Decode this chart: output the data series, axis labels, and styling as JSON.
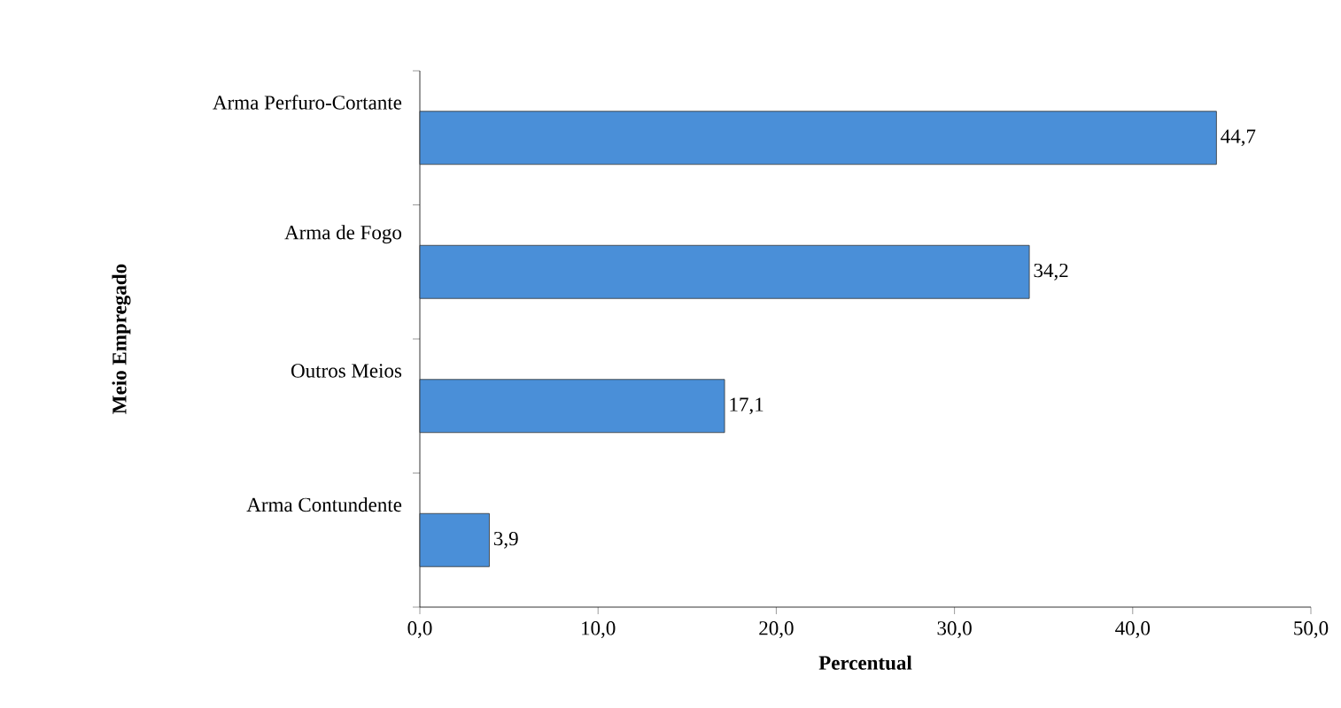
{
  "chart_data": {
    "type": "bar",
    "orientation": "horizontal",
    "xlabel": "Percentual",
    "ylabel": "Meio Empregado",
    "categories": [
      "Arma Perfuro-Cortante",
      "Arma de Fogo",
      "Outros Meios",
      "Arma Contundente"
    ],
    "values": [
      44.7,
      34.2,
      17.1,
      3.9
    ],
    "value_labels": [
      "44,7",
      "34,2",
      "17,1",
      "3,9"
    ],
    "color": "#4a8fd8",
    "xlim": [
      0,
      50
    ],
    "xticks": [
      {
        "value": 0,
        "label": "0,0"
      },
      {
        "value": 10,
        "label": "10,0"
      },
      {
        "value": 20,
        "label": "20,0"
      },
      {
        "value": 30,
        "label": "30,0"
      },
      {
        "value": 40,
        "label": "40,0"
      },
      {
        "value": 50,
        "label": "50,0"
      }
    ],
    "grid": false
  }
}
